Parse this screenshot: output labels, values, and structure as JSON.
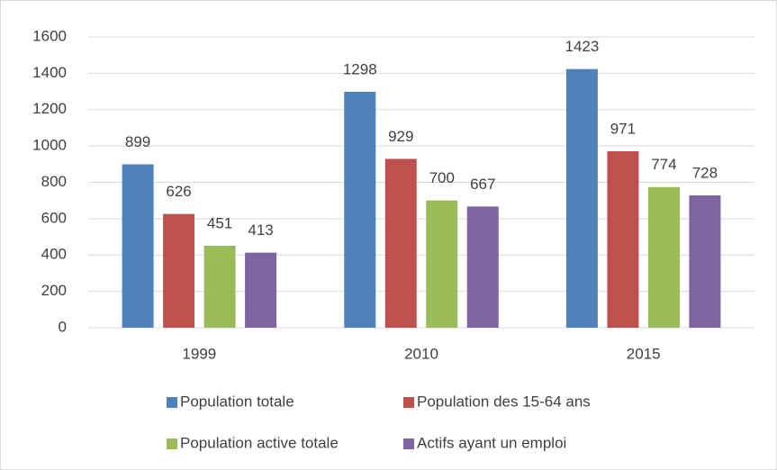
{
  "chart_data": {
    "type": "bar",
    "categories": [
      "1999",
      "2010",
      "2015"
    ],
    "series": [
      {
        "name": "Population totale",
        "color": "#4f81bd",
        "values": [
          899,
          1298,
          1423
        ]
      },
      {
        "name": "Population des 15-64 ans",
        "color": "#c0504d",
        "values": [
          626,
          929,
          971
        ]
      },
      {
        "name": "Population active totale",
        "color": "#9bbb59",
        "values": [
          451,
          700,
          774
        ]
      },
      {
        "name": "Actifs ayant un emploi",
        "color": "#8064a2",
        "values": [
          413,
          667,
          728
        ]
      }
    ],
    "ylim": [
      0,
      1600
    ],
    "yticks": [
      0,
      200,
      400,
      600,
      800,
      1000,
      1200,
      1400,
      1600
    ],
    "grid": true,
    "legend": "bottom",
    "data_labels": true
  }
}
